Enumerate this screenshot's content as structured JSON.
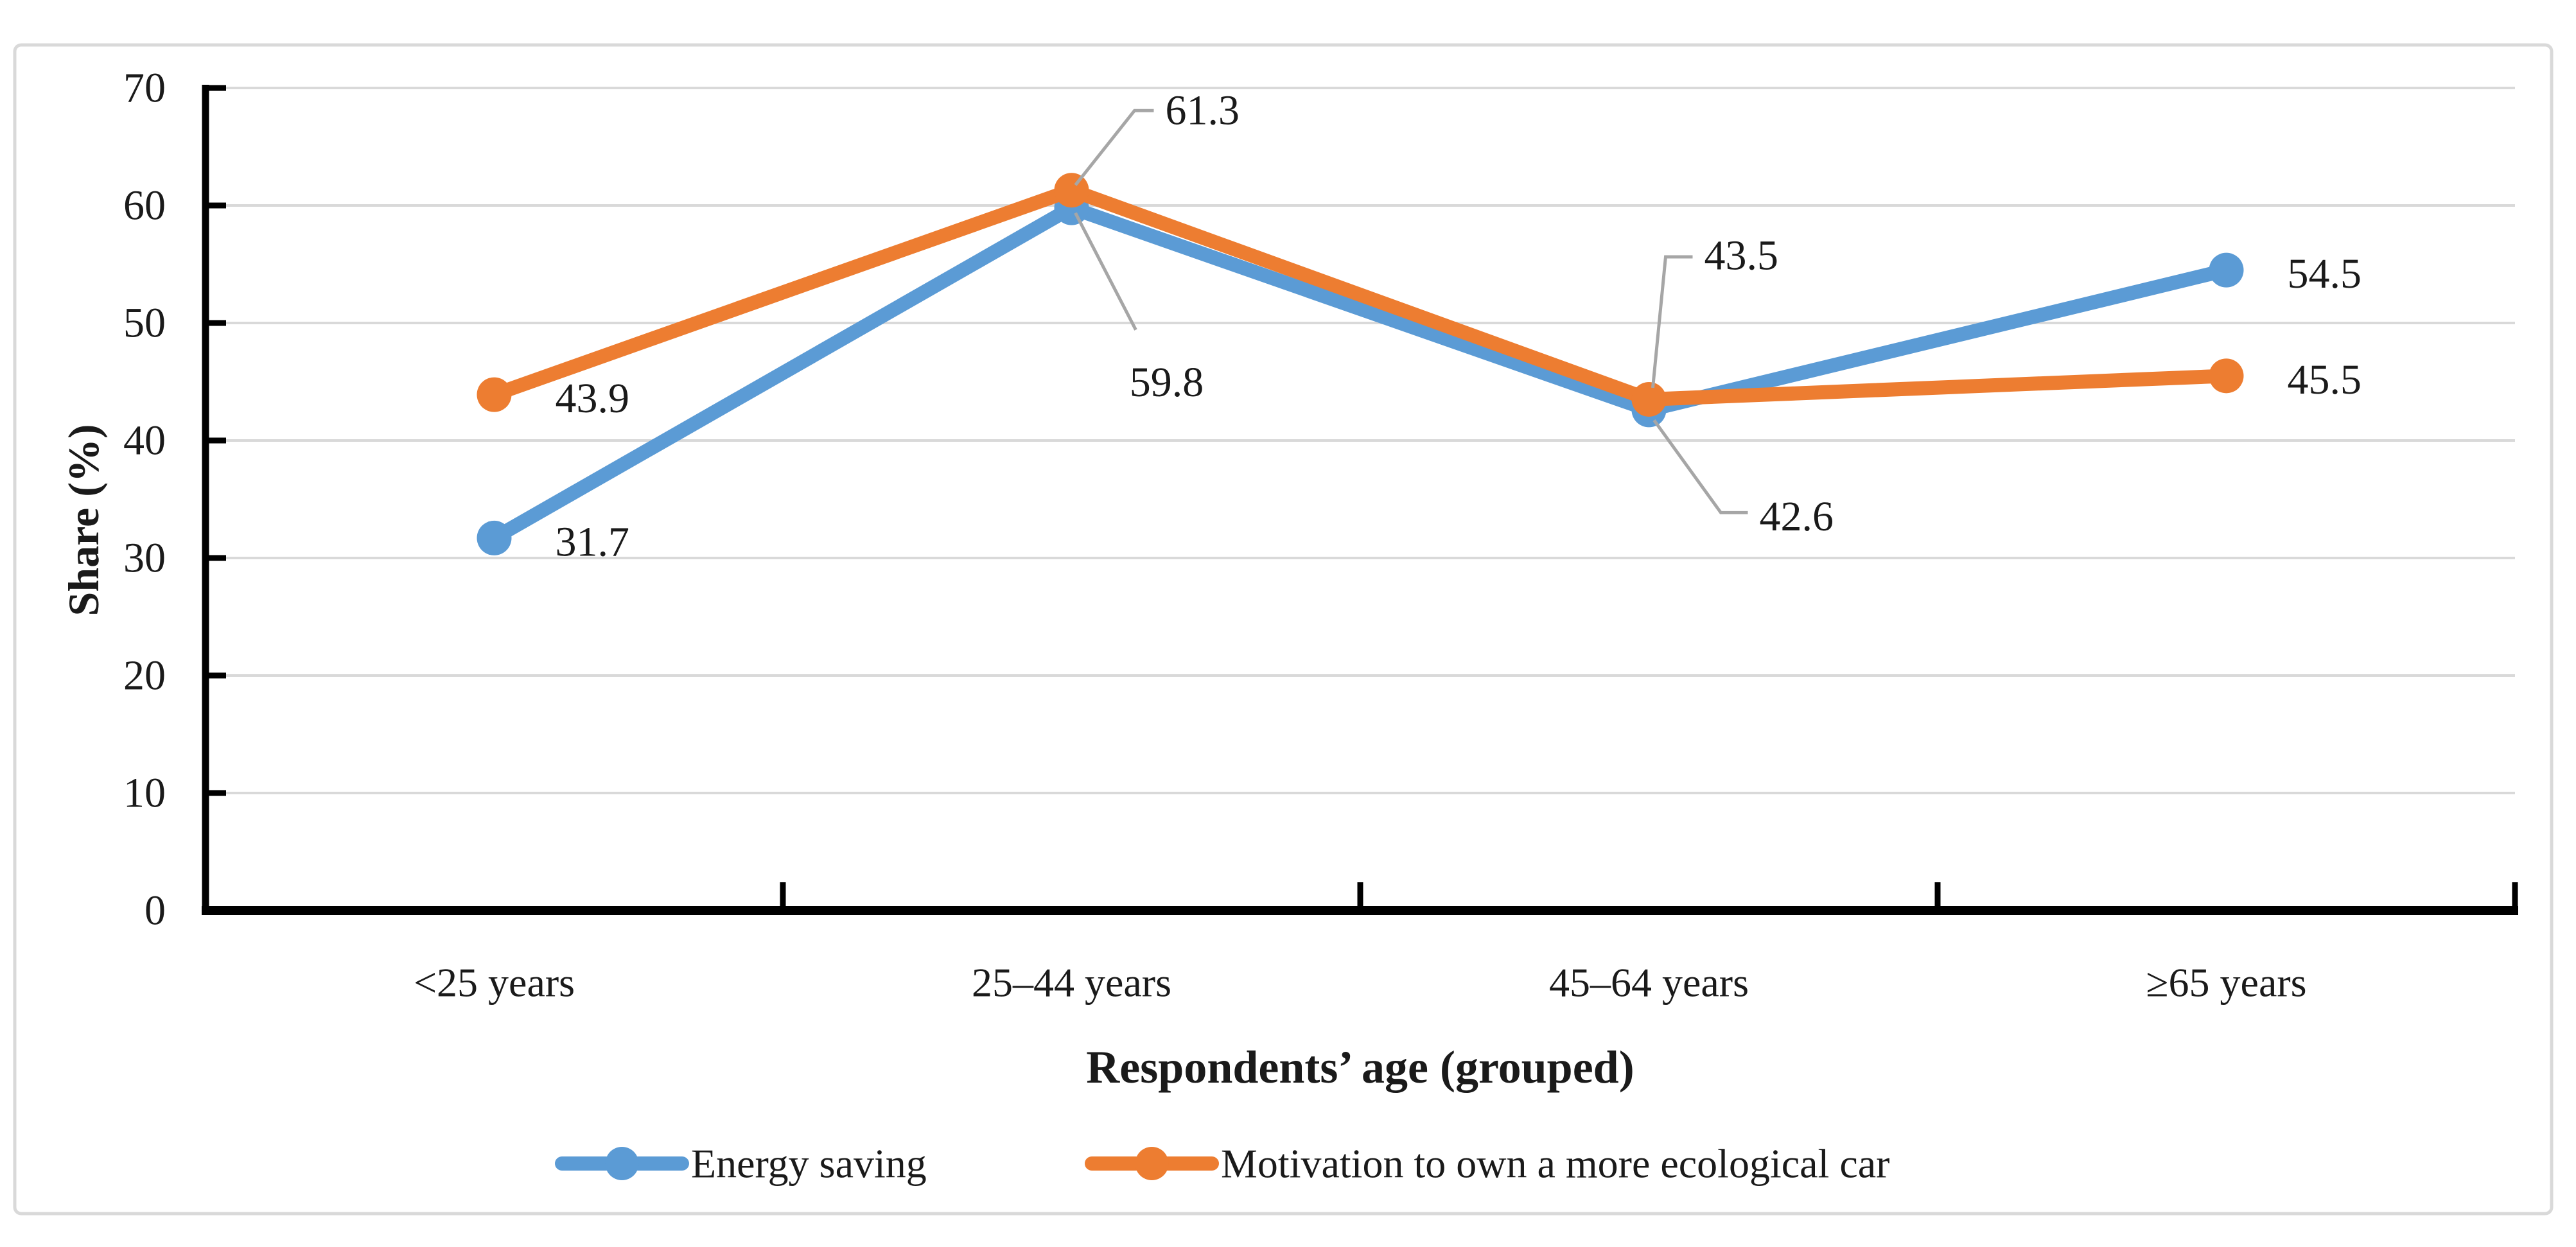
{
  "chart_data": {
    "type": "line",
    "title": "",
    "categories": [
      "<25 years",
      "25–44 years",
      "45–64 years",
      "≥65 years"
    ],
    "series": [
      {
        "name": "Energy saving",
        "color": "#5B9BD5",
        "values": [
          31.7,
          59.8,
          42.6,
          54.5
        ],
        "labels": [
          "31.7",
          "59.8",
          "42.6",
          "54.5"
        ]
      },
      {
        "name": "Motivation to own a more ecological car",
        "color": "#ED7D31",
        "values": [
          43.9,
          61.3,
          43.5,
          45.5
        ],
        "labels": [
          "43.9",
          "61.3",
          "43.5",
          "45.5"
        ]
      }
    ],
    "xlabel": "Respondents’ age (grouped)",
    "ylabel": "Share (%)",
    "ylim": [
      0,
      70
    ],
    "yticks": [
      0,
      10,
      20,
      30,
      40,
      50,
      60,
      70
    ],
    "grid": "horizontal",
    "legend_position": "bottom",
    "marker": "circle",
    "colors": {
      "gridline": "#D9D9D9",
      "axis": "#000000",
      "leader": "#A6A6A6",
      "text": "#1A1A1A",
      "border": "#D9D9D9",
      "background": "#FFFFFF"
    }
  }
}
